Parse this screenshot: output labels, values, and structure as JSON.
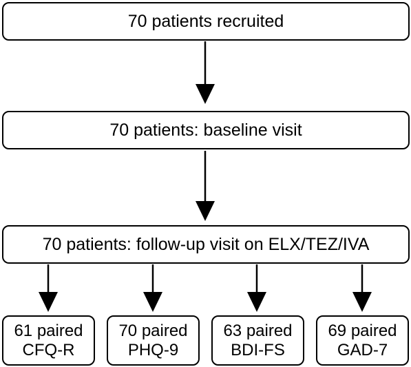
{
  "flowchart": {
    "step_recruited": "70 patients recruited",
    "step_baseline": "70 patients: baseline visit",
    "step_followup": "70 patients: follow-up visit on ELX/TEZ/IVA",
    "outcomes": [
      {
        "line1": "61 paired",
        "line2": "CFQ-R"
      },
      {
        "line1": "70 paired",
        "line2": "PHQ-9"
      },
      {
        "line1": "63 paired",
        "line2": "BDI-FS"
      },
      {
        "line1": "69 paired",
        "line2": "GAD-7"
      }
    ]
  }
}
